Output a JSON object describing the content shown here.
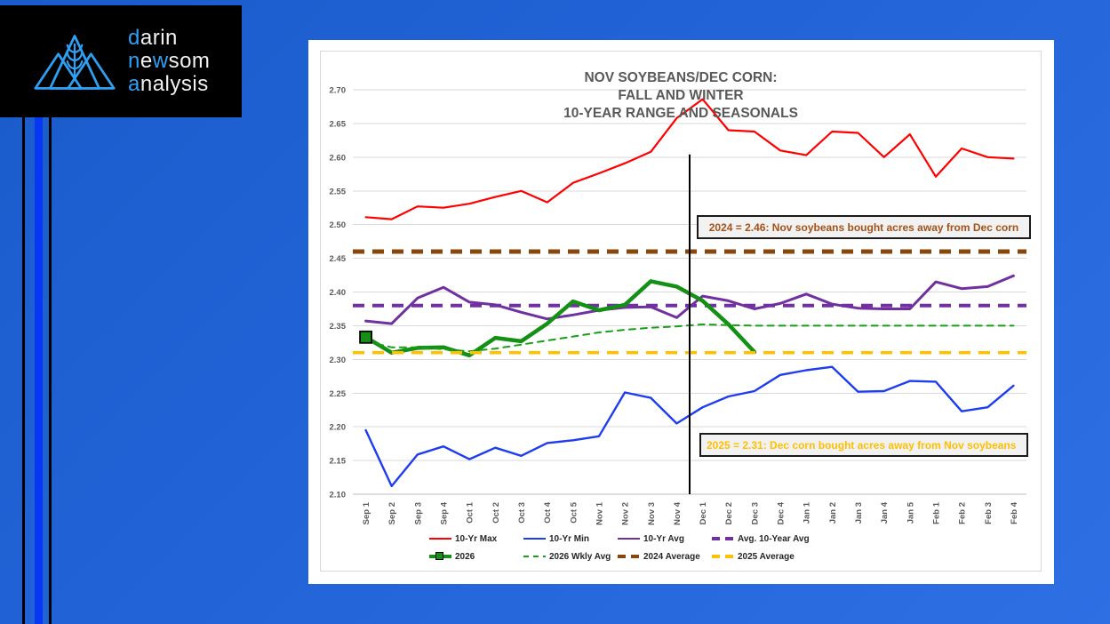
{
  "logo": {
    "line1": {
      "a": "d",
      "b": "arin"
    },
    "line2": {
      "a": "n",
      "b": "e",
      "c": "w",
      "d": "som"
    },
    "line3": {
      "a": "a",
      "b": "nalysis"
    },
    "highlight_color": "#2f9ff2",
    "icon": "three-mountains-with-wheat-ear"
  },
  "chart_data": {
    "type": "line",
    "title_lines": [
      "NOV SOYBEANS/DEC CORN:",
      "FALL AND WINTER",
      "10-YEAR RANGE AND SEASONALS"
    ],
    "ylim": [
      2.1,
      2.7
    ],
    "ytick": 0.05,
    "grid_on": true,
    "grid_color": "#d9d9d9",
    "axis_color": "#bfbfbf",
    "tick_label_color": "#595959",
    "legend_position": "bottom",
    "categories": [
      "Sep 1",
      "Sep 2",
      "Sep 3",
      "Sep 4",
      "Oct 1",
      "Oct 2",
      "Oct 3",
      "Oct 4",
      "Oct 5",
      "Nov 1",
      "Nov 2",
      "Nov 3",
      "Nov 4",
      "Dec 1",
      "Dec 2",
      "Dec 3",
      "Dec 4",
      "Jan 1",
      "Jan 2",
      "Jan 3",
      "Jan 4",
      "Jan 5",
      "Feb 1",
      "Feb 2",
      "Feb 3",
      "Feb 4"
    ],
    "series": [
      {
        "name": "10-Yr Max",
        "color": "#ff0000",
        "style": "solid",
        "width": 2.2,
        "values": [
          2.511,
          2.508,
          2.527,
          2.525,
          2.531,
          2.541,
          2.55,
          2.533,
          2.562,
          2.576,
          2.591,
          2.608,
          2.658,
          2.686,
          2.64,
          2.638,
          2.61,
          2.603,
          2.638,
          2.636,
          2.6,
          2.634,
          2.571,
          2.613,
          2.6,
          2.598
        ]
      },
      {
        "name": "10-Yr Min",
        "color": "#1e3cf0",
        "style": "solid",
        "width": 2.4,
        "values": [
          2.195,
          2.112,
          2.159,
          2.171,
          2.152,
          2.169,
          2.157,
          2.176,
          2.18,
          2.186,
          2.251,
          2.243,
          2.205,
          2.229,
          2.245,
          2.253,
          2.277,
          2.284,
          2.289,
          2.252,
          2.253,
          2.268,
          2.267,
          2.223,
          2.229,
          2.261
        ]
      },
      {
        "name": "10-Yr Avg",
        "color": "#7030a0",
        "style": "solid",
        "width": 3,
        "values": [
          2.357,
          2.353,
          2.391,
          2.407,
          2.385,
          2.381,
          2.37,
          2.36,
          2.366,
          2.373,
          2.377,
          2.378,
          2.362,
          2.394,
          2.387,
          2.375,
          2.383,
          2.397,
          2.382,
          2.376,
          2.375,
          2.375,
          2.415,
          2.405,
          2.408,
          2.424
        ]
      },
      {
        "name": "Avg. 10-Year Avg",
        "color": "#7030a0",
        "style": "dash",
        "width": 4,
        "values": 2.38
      },
      {
        "name": "2026",
        "color": "#149114",
        "style": "solid",
        "width": 4.5,
        "marker": "square-first",
        "marker_size": 13,
        "values": [
          2.333,
          2.31,
          2.317,
          2.318,
          2.306,
          2.332,
          2.327,
          2.353,
          2.386,
          2.373,
          2.381,
          2.416,
          2.408,
          2.387,
          2.352,
          2.311,
          null,
          null,
          null,
          null,
          null,
          null,
          null,
          null,
          null,
          null
        ]
      },
      {
        "name": "2026 Wkly Avg",
        "color": "#17a017",
        "style": "dash_sm",
        "width": 2,
        "values": [
          2.327,
          2.318,
          2.318,
          2.315,
          2.312,
          2.316,
          2.322,
          2.328,
          2.334,
          2.34,
          2.344,
          2.347,
          2.349,
          2.352,
          2.351,
          2.35,
          2.35,
          2.35,
          2.35,
          2.35,
          2.35,
          2.35,
          2.35,
          2.35,
          2.35,
          2.35
        ]
      },
      {
        "name": "2024 Average",
        "color": "#8a470c",
        "style": "dash",
        "width": 5,
        "values": 2.46
      },
      {
        "name": "2025 Average",
        "color": "#ffc000",
        "style": "dash",
        "width": 3.5,
        "values": 2.31
      }
    ],
    "legend_rows": [
      [
        0,
        1,
        2,
        3
      ],
      [
        4,
        5,
        6,
        7
      ]
    ],
    "vline": {
      "at_boundary_index": 13,
      "from": 2.604,
      "to": 2.1,
      "color": "#000000",
      "width": 2
    },
    "annotations": [
      {
        "text": "2024 = 2.46: Nov soybeans bought acres away from Dec corn",
        "color": "#a3531a",
        "value": 2.46
      },
      {
        "text": "2025 = 2.31: Dec corn bought acres away from Nov soybeans",
        "color": "#ffc000",
        "value": 2.31
      }
    ]
  }
}
